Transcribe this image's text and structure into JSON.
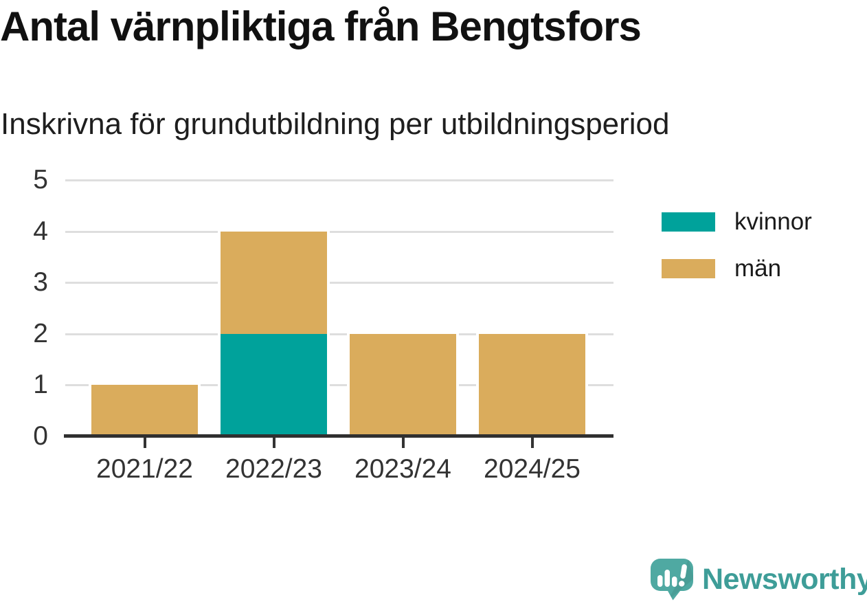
{
  "header": {
    "title": "Antal värnpliktiga från Bengtsfors",
    "subtitle": "Inskrivna för grundutbildning per utbildningsperiod"
  },
  "chart_data": {
    "type": "bar",
    "stacked": true,
    "title": "Antal värnpliktiga från Bengtsfors",
    "subtitle": "Inskrivna för grundutbildning per utbildningsperiod",
    "categories": [
      "2021/22",
      "2022/23",
      "2023/24",
      "2024/25"
    ],
    "series": [
      {
        "name": "kvinnor",
        "color": "#00A29B",
        "values": [
          0,
          2,
          0,
          0
        ]
      },
      {
        "name": "män",
        "color": "#DAAC5C",
        "values": [
          1,
          2,
          2,
          2
        ]
      }
    ],
    "xlabel": "",
    "ylabel": "",
    "ylim": [
      0,
      5
    ],
    "yticks": [
      0,
      1,
      2,
      3,
      4,
      5
    ],
    "grid": "horizontal",
    "legend_position": "right"
  },
  "footer": {
    "brand": "Newsworthy"
  },
  "colors": {
    "kvinnor": "#00A29B",
    "man": "#DAAC5C",
    "axis_line": "#303030",
    "gridline": "#DEDEDE",
    "tick": "#333333",
    "tick_label": "#333333",
    "title_text": "#111111",
    "legend_text": "#1a1a1a",
    "brand_teal": "#3E9D98",
    "logo_teal": "#4FA9A2"
  }
}
